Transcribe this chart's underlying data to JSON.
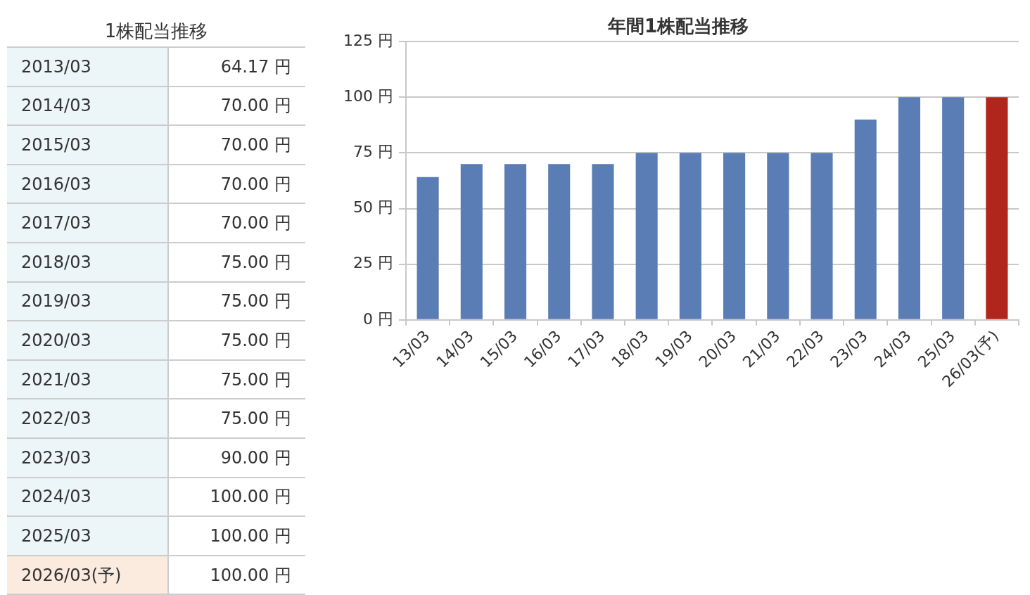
{
  "chart_data": [
    {
      "type": "other",
      "title": "1株配当推移",
      "categories": [
        "2013/03",
        "2014/03",
        "2015/03",
        "2016/03",
        "2017/03",
        "2018/03",
        "2019/03",
        "2020/03",
        "2021/03",
        "2022/03",
        "2023/03",
        "2024/03",
        "2025/03",
        "2026/03(予)"
      ],
      "value_labels": [
        "64.17 円",
        "70.00 円",
        "70.00 円",
        "70.00 円",
        "70.00 円",
        "75.00 円",
        "75.00 円",
        "75.00 円",
        "75.00 円",
        "75.00 円",
        "90.00 円",
        "100.00 円",
        "100.00 円",
        "100.00 円"
      ],
      "colors": [
        "#ecf5f8",
        "#ecf5f8",
        "#ecf5f8",
        "#ecf5f8",
        "#ecf5f8",
        "#ecf5f8",
        "#ecf5f8",
        "#ecf5f8",
        "#ecf5f8",
        "#ecf5f8",
        "#ecf5f8",
        "#ecf5f8",
        "#ecf5f8",
        "#fbebdf"
      ]
    },
    {
      "type": "bar",
      "title": "年間1株配当推移",
      "categories": [
        "13/03",
        "14/03",
        "15/03",
        "16/03",
        "17/03",
        "18/03",
        "19/03",
        "20/03",
        "21/03",
        "22/03",
        "23/03",
        "24/03",
        "25/03",
        "26/03(予)"
      ],
      "values": [
        64.17,
        70,
        70,
        70,
        70,
        75,
        75,
        75,
        75,
        75,
        90,
        100,
        100,
        100
      ],
      "colors": [
        "#5a7db5",
        "#5a7db5",
        "#5a7db5",
        "#5a7db5",
        "#5a7db5",
        "#5a7db5",
        "#5a7db5",
        "#5a7db5",
        "#5a7db5",
        "#5a7db5",
        "#5a7db5",
        "#5a7db5",
        "#5a7db5",
        "#b0261c"
      ],
      "ylim": [
        0,
        125
      ],
      "yticks": [
        {
          "value": 0,
          "label": "0 円"
        },
        {
          "value": 25,
          "label": "25 円"
        },
        {
          "value": 50,
          "label": "50 円"
        },
        {
          "value": 75,
          "label": "75 円"
        },
        {
          "value": 100,
          "label": "100 円"
        },
        {
          "value": 125,
          "label": "125 円"
        }
      ],
      "grid": "y",
      "legend": false
    }
  ]
}
